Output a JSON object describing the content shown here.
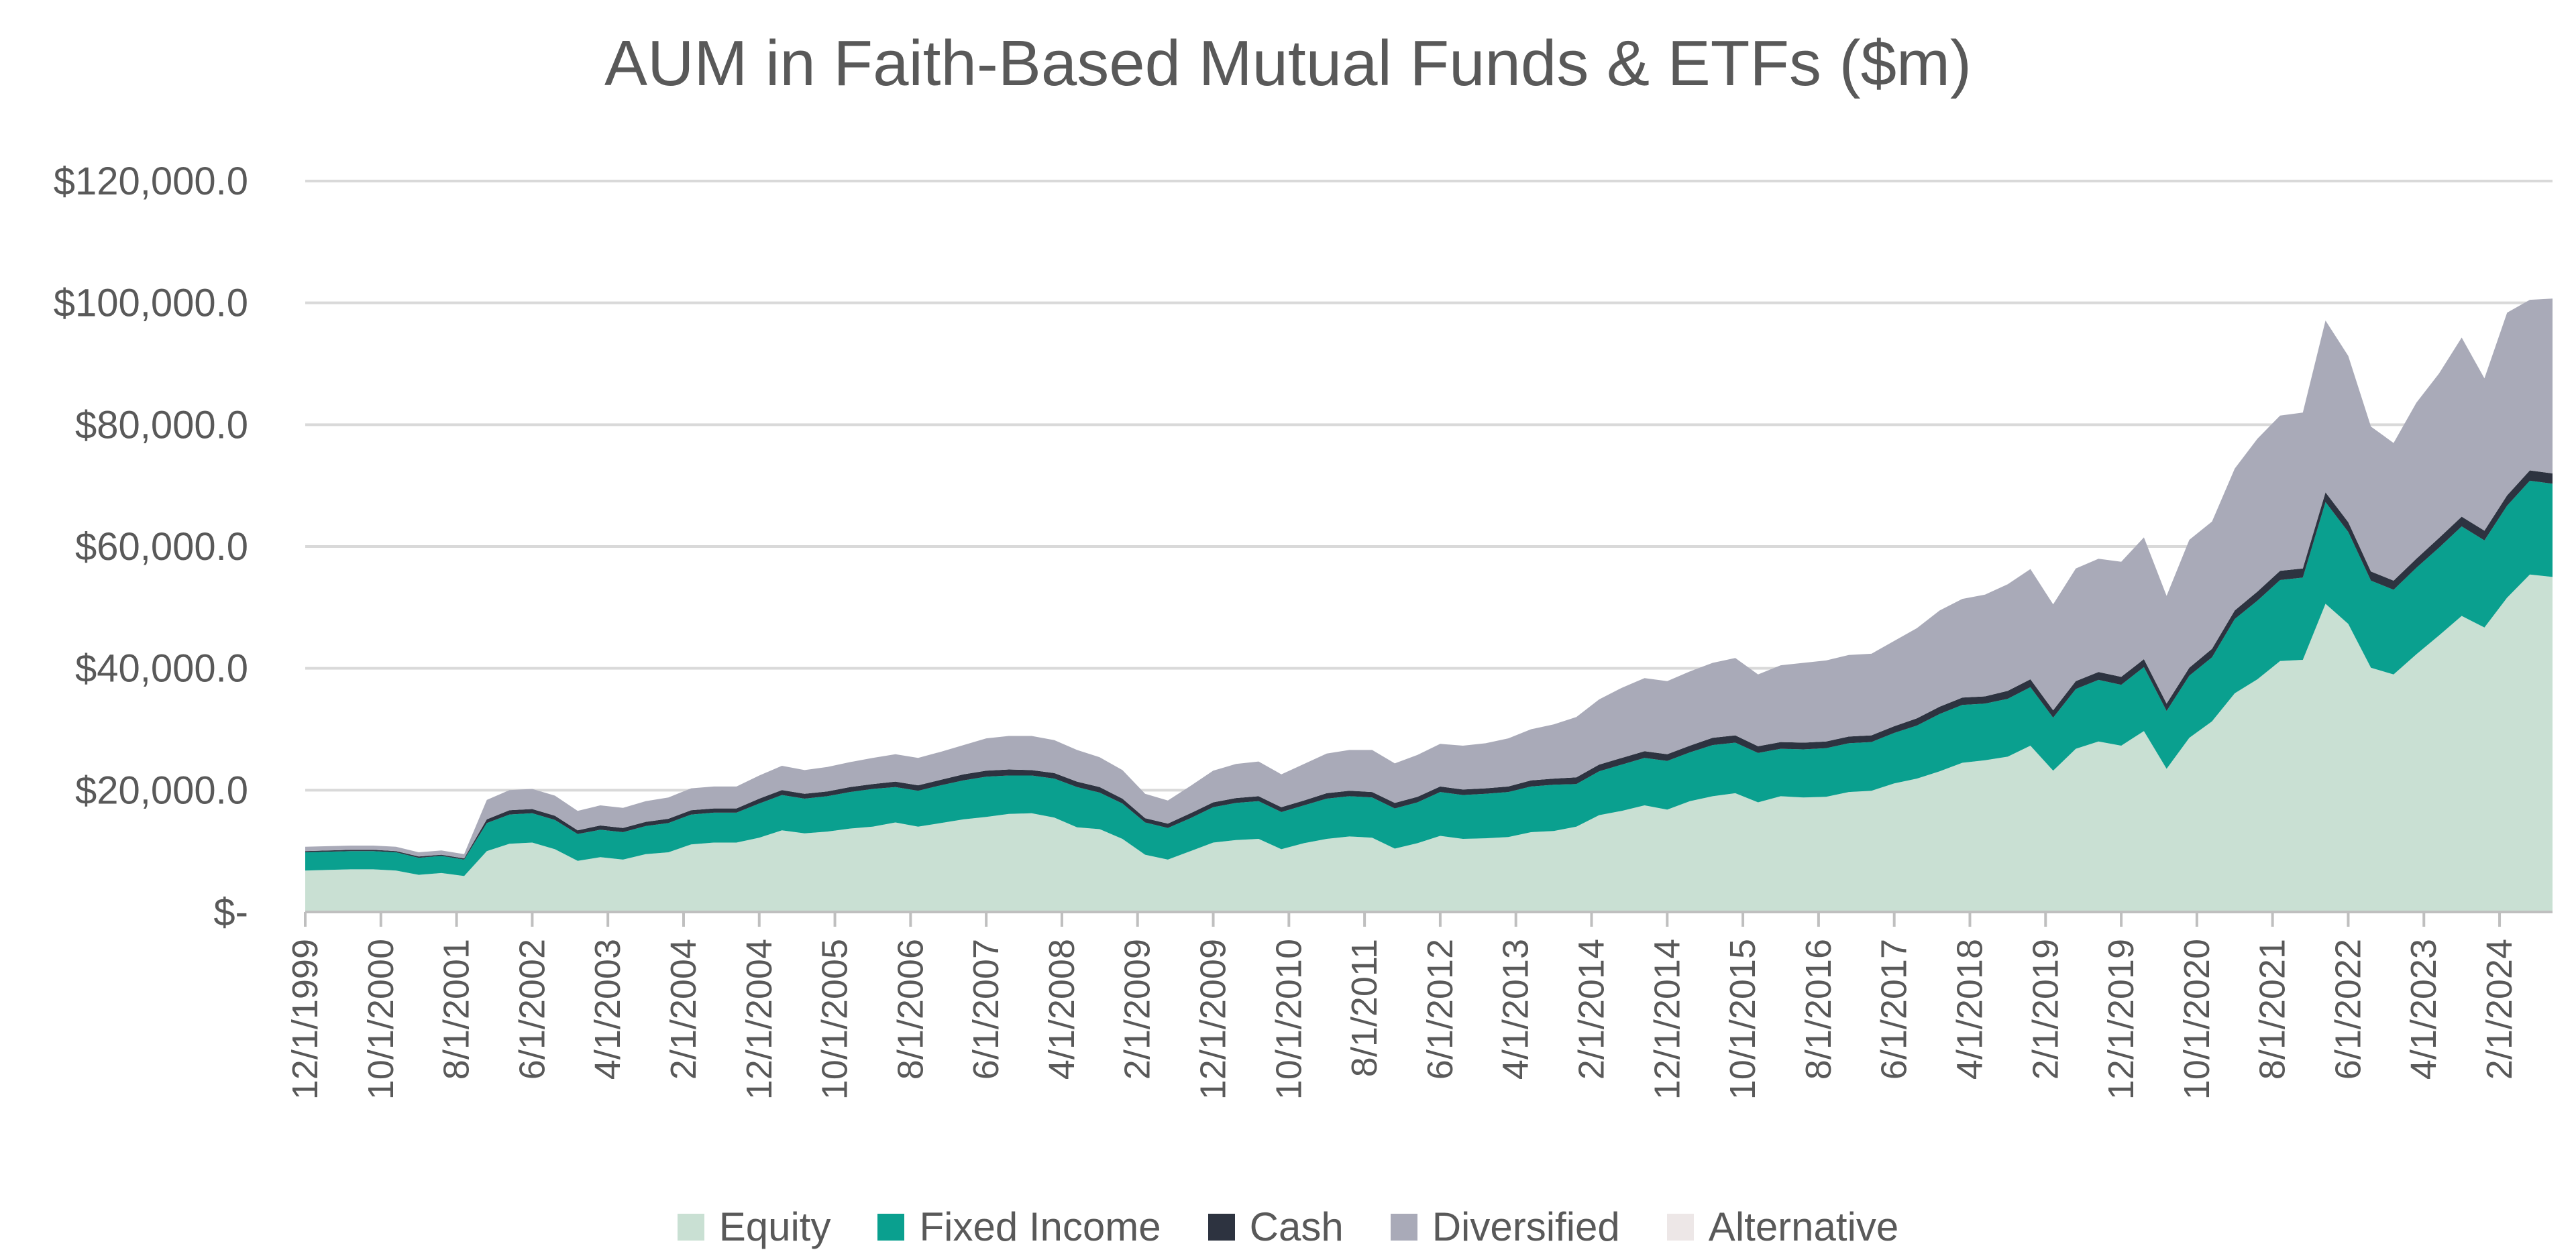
{
  "chart_data": {
    "type": "area",
    "stacked": true,
    "title": "AUM in Faith-Based Mutual Funds & ETFs ($m)",
    "xlabel": "",
    "ylabel": "",
    "ylim": [
      0,
      120000
    ],
    "y_ticks": [
      {
        "value": 0,
        "label": "$-"
      },
      {
        "value": 20000,
        "label": "$20,000.0"
      },
      {
        "value": 40000,
        "label": "$40,000.0"
      },
      {
        "value": 60000,
        "label": "$60,000.0"
      },
      {
        "value": 80000,
        "label": "$80,000.0"
      },
      {
        "value": 100000,
        "label": "$100,000.0"
      },
      {
        "value": 120000,
        "label": "$120,000.0"
      }
    ],
    "x_tick_labels": [
      "12/1/1999",
      "10/1/2000",
      "8/1/2001",
      "6/1/2002",
      "4/1/2003",
      "2/1/2004",
      "12/1/2004",
      "10/1/2005",
      "8/1/2006",
      "6/1/2007",
      "4/1/2008",
      "2/1/2009",
      "12/1/2009",
      "10/1/2010",
      "8/1/2011",
      "6/1/2012",
      "4/1/2013",
      "2/1/2014",
      "12/1/2014",
      "10/1/2015",
      "8/1/2016",
      "6/1/2017",
      "4/1/2018",
      "2/1/2019",
      "12/1/2019",
      "10/1/2020",
      "8/1/2021",
      "6/1/2022",
      "4/1/2023",
      "2/1/2024"
    ],
    "x": [
      "1999-12",
      "2000-03",
      "2000-06",
      "2000-09",
      "2000-12",
      "2001-03",
      "2001-06",
      "2001-09",
      "2001-12",
      "2002-03",
      "2002-06",
      "2002-09",
      "2002-12",
      "2003-03",
      "2003-06",
      "2003-09",
      "2003-12",
      "2004-03",
      "2004-06",
      "2004-09",
      "2004-12",
      "2005-03",
      "2005-06",
      "2005-09",
      "2005-12",
      "2006-03",
      "2006-06",
      "2006-09",
      "2006-12",
      "2007-03",
      "2007-06",
      "2007-09",
      "2007-12",
      "2008-03",
      "2008-06",
      "2008-09",
      "2008-12",
      "2009-03",
      "2009-06",
      "2009-09",
      "2009-12",
      "2010-03",
      "2010-06",
      "2010-09",
      "2010-12",
      "2011-03",
      "2011-06",
      "2011-09",
      "2011-12",
      "2012-03",
      "2012-06",
      "2012-09",
      "2012-12",
      "2013-03",
      "2013-06",
      "2013-09",
      "2013-12",
      "2014-03",
      "2014-06",
      "2014-09",
      "2014-12",
      "2015-03",
      "2015-06",
      "2015-09",
      "2015-12",
      "2016-03",
      "2016-06",
      "2016-09",
      "2016-12",
      "2017-03",
      "2017-06",
      "2017-09",
      "2017-12",
      "2018-03",
      "2018-06",
      "2018-09",
      "2018-12",
      "2019-03",
      "2019-06",
      "2019-09",
      "2019-12",
      "2020-03",
      "2020-06",
      "2020-09",
      "2020-12",
      "2021-03",
      "2021-06",
      "2021-09",
      "2021-12",
      "2022-03",
      "2022-06",
      "2022-09",
      "2022-12",
      "2023-03",
      "2023-06",
      "2023-09",
      "2023-12",
      "2024-03",
      "2024-06",
      "2024-09"
    ],
    "series": [
      {
        "name": "Equity",
        "color": "#c9e0d3",
        "values": [
          6800,
          6900,
          7000,
          7000,
          6800,
          6100,
          6400,
          5900,
          10000,
          11200,
          11400,
          10300,
          8400,
          9000,
          8600,
          9500,
          9800,
          11100,
          11400,
          11400,
          12200,
          13400,
          12900,
          13200,
          13700,
          14000,
          14700,
          14000,
          14600,
          15200,
          15600,
          16100,
          16200,
          15500,
          13900,
          13600,
          12000,
          9400,
          8600,
          10000,
          11400,
          11800,
          12000,
          10300,
          11300,
          12000,
          12400,
          12200,
          10400,
          11300,
          12500,
          12000,
          12100,
          12300,
          13100,
          13300,
          14000,
          15900,
          16600,
          17500,
          16800,
          18200,
          19000,
          19500,
          18000,
          19000,
          18800,
          18900,
          19700,
          19900,
          21100,
          21900,
          23100,
          24500,
          24900,
          25500,
          27300,
          23200,
          26800,
          28000,
          27300,
          29700,
          23500,
          28600,
          31300,
          35900,
          38200,
          41200,
          41400,
          50600,
          47300,
          40100,
          39000,
          42300,
          45400,
          48600,
          46700,
          51600,
          55400,
          55000
        ]
      },
      {
        "name": "Fixed Income",
        "color": "#0aa08f",
        "values": [
          3000,
          3000,
          3000,
          3000,
          3000,
          2800,
          2800,
          2700,
          4600,
          4800,
          4800,
          4800,
          4400,
          4500,
          4500,
          4600,
          4800,
          4900,
          4900,
          4900,
          5600,
          5800,
          5700,
          5800,
          6000,
          6200,
          5800,
          5900,
          6200,
          6400,
          6600,
          6300,
          6200,
          6400,
          6600,
          6000,
          5800,
          5300,
          5200,
          5400,
          5800,
          6100,
          6200,
          6100,
          6200,
          6600,
          6600,
          6600,
          6600,
          6700,
          7200,
          7200,
          7300,
          7400,
          7500,
          7600,
          7000,
          7200,
          7600,
          7800,
          8000,
          8000,
          8400,
          8300,
          8100,
          7800,
          7900,
          8000,
          8000,
          8000,
          8300,
          8700,
          9400,
          9500,
          9300,
          9500,
          9600,
          8700,
          9800,
          10100,
          10000,
          10500,
          9500,
          10200,
          10500,
          12200,
          12900,
          13300,
          13500,
          16700,
          15100,
          14300,
          13900,
          14200,
          14400,
          14700,
          14300,
          15100,
          15400,
          15300
        ]
      },
      {
        "name": "Cash",
        "color": "#2d3340",
        "values": [
          200,
          200,
          200,
          200,
          200,
          200,
          200,
          200,
          600,
          700,
          700,
          700,
          600,
          700,
          700,
          700,
          700,
          700,
          700,
          700,
          800,
          800,
          800,
          800,
          800,
          800,
          900,
          900,
          900,
          1000,
          1000,
          1000,
          900,
          900,
          900,
          900,
          800,
          700,
          700,
          800,
          800,
          800,
          800,
          800,
          800,
          900,
          900,
          900,
          900,
          900,
          900,
          900,
          900,
          900,
          1000,
          1000,
          1100,
          1100,
          1100,
          1100,
          1100,
          1100,
          1200,
          1200,
          1100,
          1100,
          1100,
          1100,
          1100,
          1100,
          1100,
          1200,
          1200,
          1200,
          1200,
          1300,
          1300,
          1200,
          1300,
          1300,
          1300,
          1300,
          1200,
          1300,
          1400,
          1400,
          1500,
          1500,
          1500,
          1600,
          1600,
          1500,
          1500,
          1500,
          1600,
          1600,
          1600,
          1700,
          1700,
          1700
        ]
      },
      {
        "name": "Diversified",
        "color": "#a9aab8",
        "values": [
          700,
          700,
          700,
          700,
          700,
          700,
          700,
          700,
          3200,
          3300,
          3300,
          3300,
          3200,
          3300,
          3300,
          3400,
          3500,
          3600,
          3600,
          3600,
          3800,
          4000,
          3900,
          4000,
          4100,
          4300,
          4500,
          4500,
          4600,
          4800,
          5300,
          5500,
          5600,
          5400,
          5200,
          4900,
          4700,
          4000,
          3800,
          4500,
          5200,
          5600,
          5700,
          5400,
          6000,
          6500,
          6700,
          6900,
          6500,
          6900,
          7000,
          7200,
          7400,
          7900,
          8400,
          8900,
          9900,
          10700,
          11500,
          12000,
          12000,
          12200,
          12300,
          12700,
          11800,
          12600,
          13100,
          13300,
          13400,
          13400,
          14000,
          14800,
          15800,
          16200,
          16700,
          17500,
          18100,
          17400,
          18500,
          18600,
          18900,
          20000,
          17700,
          21000,
          20900,
          23300,
          25100,
          25500,
          25600,
          28200,
          27300,
          23800,
          22600,
          25600,
          27000,
          29400,
          25000,
          30000,
          28000,
          28700
        ]
      },
      {
        "name": "Alternative",
        "color": "#ede7e7",
        "values": [
          0,
          0,
          0,
          0,
          0,
          0,
          0,
          0,
          0,
          0,
          0,
          0,
          0,
          0,
          0,
          0,
          0,
          0,
          0,
          0,
          0,
          0,
          0,
          0,
          0,
          0,
          0,
          0,
          0,
          0,
          0,
          0,
          0,
          0,
          0,
          0,
          0,
          0,
          0,
          0,
          0,
          0,
          0,
          0,
          0,
          0,
          0,
          0,
          0,
          0,
          0,
          0,
          0,
          0,
          0,
          0,
          0,
          0,
          0,
          0,
          0,
          0,
          0,
          0,
          0,
          0,
          0,
          0,
          0,
          0,
          0,
          0,
          0,
          0,
          0,
          0,
          0,
          0,
          0,
          0,
          0,
          0,
          0,
          0,
          0,
          0,
          0,
          0,
          0,
          0,
          0,
          0,
          0,
          0,
          0,
          0,
          0,
          0,
          0,
          0
        ]
      }
    ],
    "legend": {
      "position": "bottom"
    },
    "grid": {
      "y": true,
      "x": false,
      "color": "#d9d9d9"
    }
  }
}
